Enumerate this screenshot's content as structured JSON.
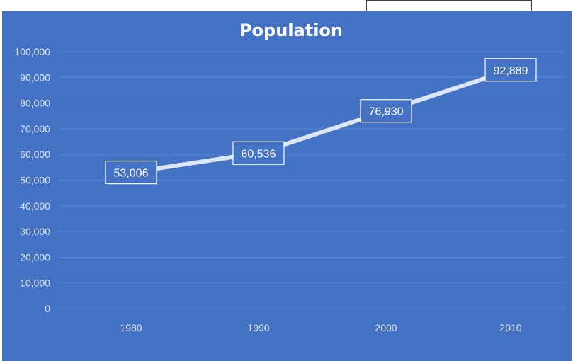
{
  "chart_data": {
    "type": "line",
    "title": "Population",
    "xlabel": "",
    "ylabel": "",
    "categories": [
      "1980",
      "1990",
      "2000",
      "2010"
    ],
    "series": [
      {
        "values": [
          53006,
          60536,
          76930,
          92889
        ]
      }
    ],
    "data_labels": [
      "53,006",
      "60,536",
      "76,930",
      "92,889"
    ],
    "yticks": [
      0,
      10000,
      20000,
      30000,
      40000,
      50000,
      60000,
      70000,
      80000,
      90000,
      100000
    ],
    "ytick_labels": [
      "0",
      "10,000",
      "20,000",
      "30,000",
      "40,000",
      "50,000",
      "60,000",
      "70,000",
      "80,000",
      "90,000",
      "100,000"
    ],
    "ylim": [
      0,
      100000
    ],
    "grid": true,
    "legend": "none"
  },
  "colors": {
    "background": "#4472c4",
    "line": "#dbe6f7",
    "gridline": "#5a82cc",
    "text": "#ffffff"
  }
}
